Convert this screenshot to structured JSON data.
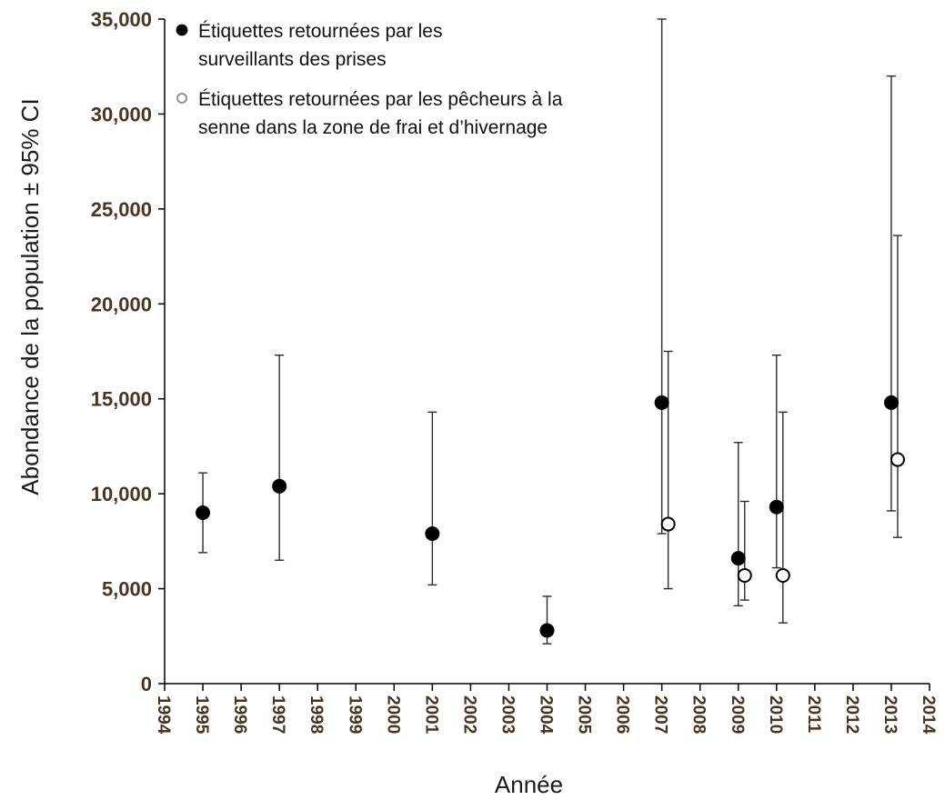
{
  "chart_data": {
    "type": "scatter",
    "xlabel": "Année",
    "ylabel": "Abondance de la population ± 95% CI",
    "xlim": [
      1994,
      2014
    ],
    "ylim": [
      0,
      35000
    ],
    "x_ticks": [
      "1994",
      "1995",
      "1996",
      "1997",
      "1998",
      "1999",
      "2000",
      "2001",
      "2002",
      "2003",
      "2004",
      "2005",
      "2006",
      "2007",
      "2008",
      "2009",
      "2010",
      "2011",
      "2012",
      "2013",
      "2014"
    ],
    "y_ticks": [
      "0",
      "5,000",
      "10,000",
      "15,000",
      "20,000",
      "25,000",
      "30,000",
      "35,000"
    ],
    "grid": false,
    "legend_position": "top-left",
    "series": [
      {
        "name": "Étiquettes retournées par les surveillants des prises",
        "legend_lines": [
          "Étiquettes retournées par les",
          "surveillants des prises"
        ],
        "marker": "filled",
        "color": "#000000",
        "points": [
          {
            "x": 1995,
            "y": 9000,
            "low": 6900,
            "high": 11100
          },
          {
            "x": 1997,
            "y": 10400,
            "low": 6500,
            "high": 17300
          },
          {
            "x": 2001,
            "y": 7900,
            "low": 5200,
            "high": 14300
          },
          {
            "x": 2004,
            "y": 2800,
            "low": 2100,
            "high": 4600
          },
          {
            "x": 2007,
            "y": 14800,
            "low": 7900,
            "high": 35000
          },
          {
            "x": 2009,
            "y": 6600,
            "low": 4100,
            "high": 12700
          },
          {
            "x": 2010,
            "y": 9300,
            "low": 6100,
            "high": 17300
          },
          {
            "x": 2013,
            "y": 14800,
            "low": 9100,
            "high": 32000
          }
        ]
      },
      {
        "name": "Étiquettes retournées par les pêcheurs à la senne dans la zone de frai et d’hivernage",
        "legend_lines": [
          "Étiquettes retournées par les pêcheurs à la",
          "senne dans la zone de frai et d’hivernage"
        ],
        "marker": "open",
        "color": "#000000",
        "points": [
          {
            "x": 2007,
            "y": 8400,
            "low": 5000,
            "high": 17500
          },
          {
            "x": 2009,
            "y": 5700,
            "low": 4400,
            "high": 9600
          },
          {
            "x": 2010,
            "y": 5700,
            "low": 3200,
            "high": 14300
          },
          {
            "x": 2013,
            "y": 11800,
            "low": 7700,
            "high": 23600
          }
        ]
      }
    ]
  }
}
